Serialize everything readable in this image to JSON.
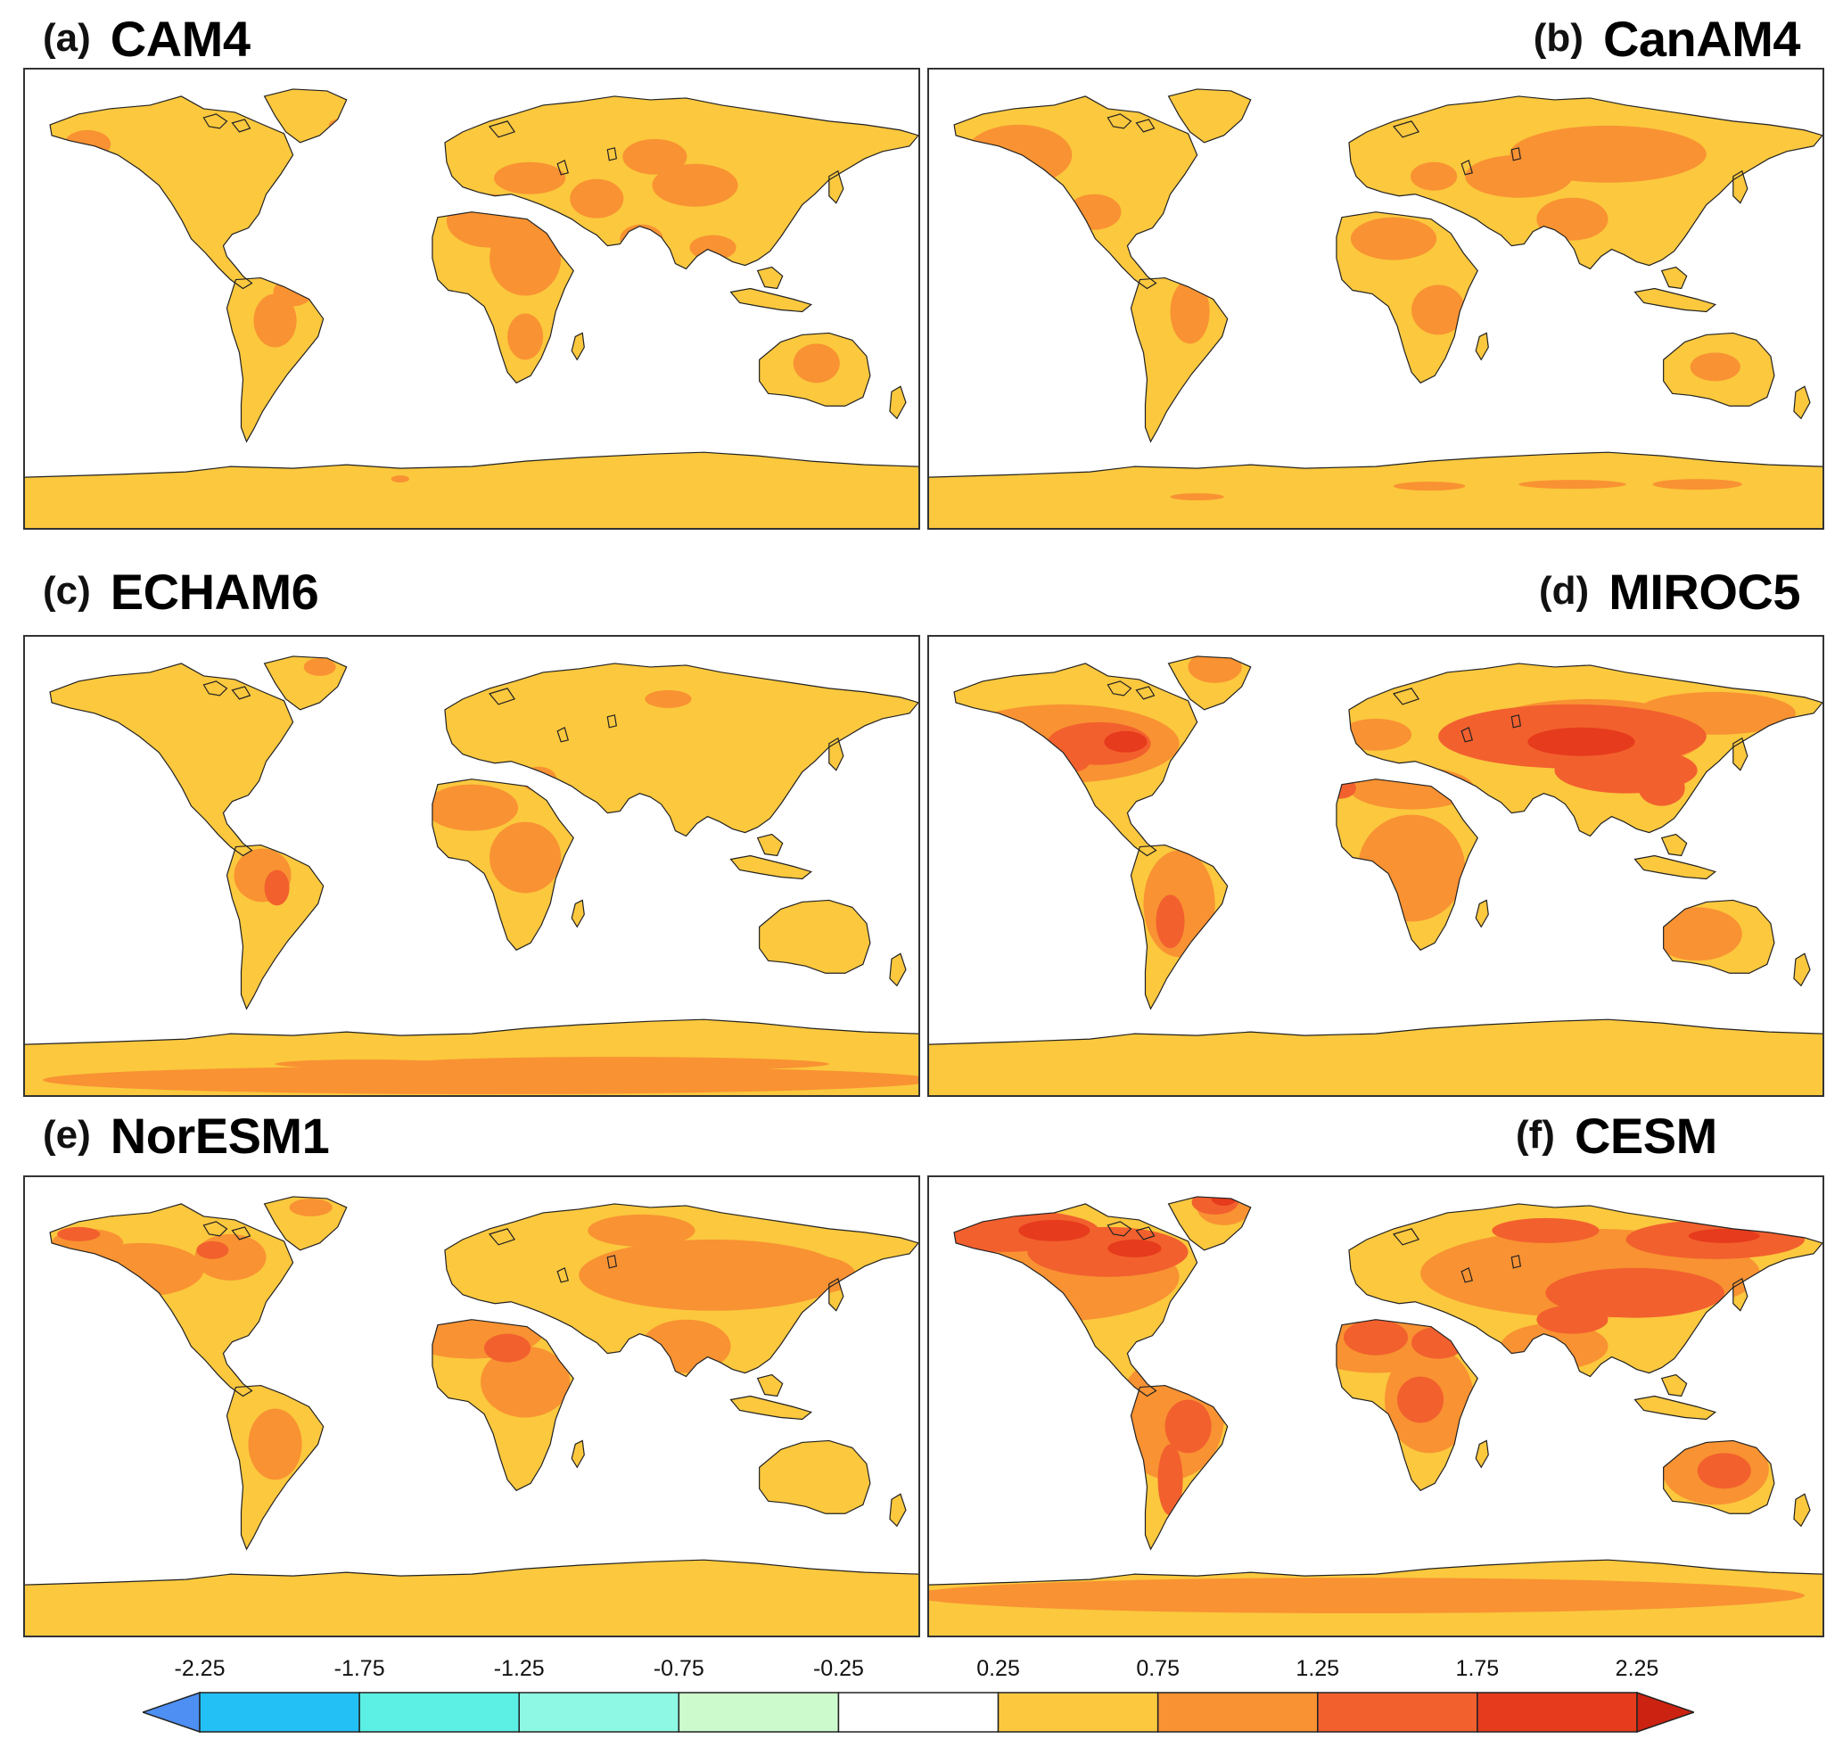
{
  "panels": [
    {
      "label": "(a)",
      "name": "CAM4",
      "scheme": "a"
    },
    {
      "label": "(b)",
      "name": "CanAM4",
      "scheme": "b"
    },
    {
      "label": "(c)",
      "name": "ECHAM6",
      "scheme": "c"
    },
    {
      "label": "(d)",
      "name": "MIROC5",
      "scheme": "d"
    },
    {
      "label": "(e)",
      "name": "NorESM1",
      "scheme": "e"
    },
    {
      "label": "(f)",
      "name": "CESM",
      "scheme": "f"
    }
  ],
  "colorbar": {
    "tick_labels": [
      "-2.25",
      "-1.75",
      "-1.25",
      "-0.75",
      "-0.25",
      "0.25",
      "0.75",
      "1.25",
      "1.75",
      "2.25"
    ],
    "colors": [
      "#4d8ff2",
      "#22c0f4",
      "#5cf0e4",
      "#8ef8e4",
      "#ccfacc",
      "#ffffff",
      "#fbc83e",
      "#f99232",
      "#f2602e",
      "#e63b1d",
      "#cc2211"
    ]
  },
  "level_colors": {
    "0.25-0.75": "#fbc83e",
    "0.75-1.25": "#f99232",
    "1.25-1.75": "#f2602e",
    "1.75-2.25": "#e63b1d"
  }
}
